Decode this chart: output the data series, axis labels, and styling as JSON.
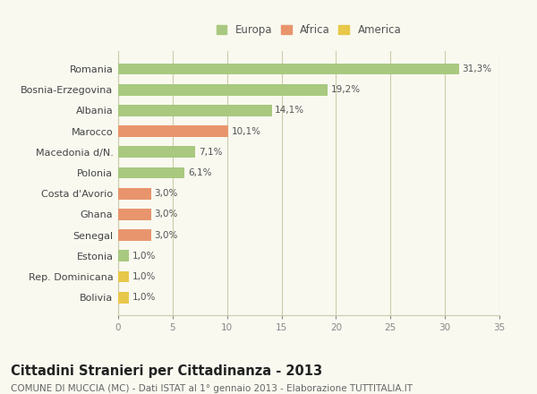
{
  "categories": [
    "Romania",
    "Bosnia-Erzegovina",
    "Albania",
    "Marocco",
    "Macedonia d/N.",
    "Polonia",
    "Costa d'Avorio",
    "Ghana",
    "Senegal",
    "Estonia",
    "Rep. Dominicana",
    "Bolivia"
  ],
  "values": [
    31.3,
    19.2,
    14.1,
    10.1,
    7.1,
    6.1,
    3.0,
    3.0,
    3.0,
    1.0,
    1.0,
    1.0
  ],
  "labels": [
    "31,3%",
    "19,2%",
    "14,1%",
    "10,1%",
    "7,1%",
    "6,1%",
    "3,0%",
    "3,0%",
    "3,0%",
    "1,0%",
    "1,0%",
    "1,0%"
  ],
  "colors": [
    "#a8c97f",
    "#a8c97f",
    "#a8c97f",
    "#e8956d",
    "#a8c97f",
    "#a8c97f",
    "#e8956d",
    "#e8956d",
    "#e8956d",
    "#a8c97f",
    "#e8c84a",
    "#e8c84a"
  ],
  "legend": [
    {
      "label": "Europa",
      "color": "#a8c97f"
    },
    {
      "label": "Africa",
      "color": "#e8956d"
    },
    {
      "label": "America",
      "color": "#e8c84a"
    }
  ],
  "xlim": [
    0,
    35
  ],
  "xticks": [
    0,
    5,
    10,
    15,
    20,
    25,
    30,
    35
  ],
  "title": "Cittadini Stranieri per Cittadinanza - 2013",
  "subtitle": "COMUNE DI MUCCIA (MC) - Dati ISTAT al 1° gennaio 2013 - Elaborazione TUTTITALIA.IT",
  "background_color": "#f9f9f0",
  "grid_color": "#ccccaa",
  "bar_height": 0.55,
  "title_fontsize": 10.5,
  "subtitle_fontsize": 7.5
}
